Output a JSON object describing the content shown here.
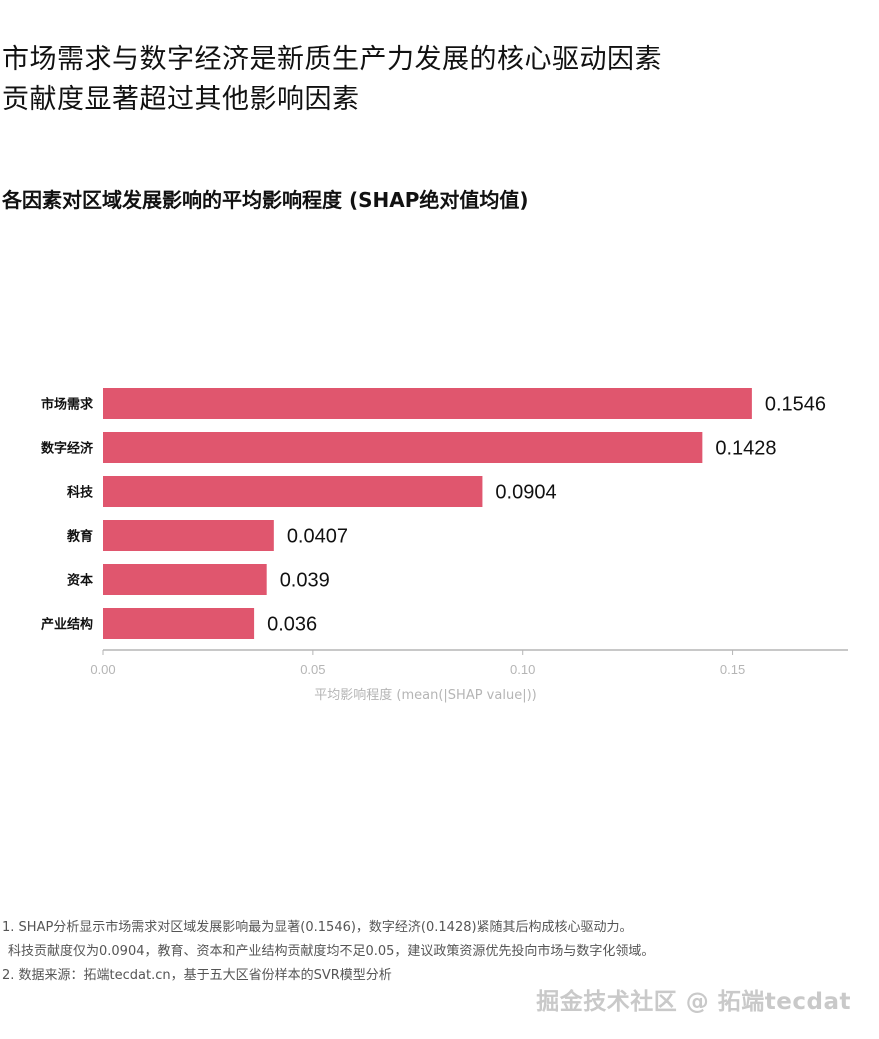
{
  "headline": {
    "line1": "市场需求与数字经济是新质生产力发展的核心驱动因素",
    "line2": "贡献度显著超过其他影响因素"
  },
  "subtitle": "各因素对区域发展影响的平均影响程度 (SHAP绝对值均值)",
  "chart_data": {
    "type": "bar",
    "orientation": "horizontal",
    "categories": [
      "市场需求",
      "数字经济",
      "科技",
      "教育",
      "资本",
      "产业结构"
    ],
    "values": [
      0.1546,
      0.1428,
      0.0904,
      0.0407,
      0.039,
      0.036
    ],
    "value_labels": [
      "0.1546",
      "0.1428",
      "0.0904",
      "0.0407",
      "0.039",
      "0.036"
    ],
    "xlabel": "平均影响程度 (mean(|SHAP value|))",
    "xticks": [
      "0.00",
      "0.05",
      "0.10",
      "0.15"
    ],
    "xtick_values": [
      0,
      0.05,
      0.1,
      0.15
    ],
    "xlim": [
      0,
      0.1775
    ],
    "bar_color": "#e0566e",
    "grid": false
  },
  "notes": {
    "line1": "1. SHAP分析显示市场需求对区域发展影响最为显著(0.1546)，数字经济(0.1428)紧随其后构成核心驱动力。",
    "line2": "   科技贡献度仅为0.0904，教育、资本和产业结构贡献度均不足0.05，建议政策资源优先投向市场与数字化领域。",
    "line3": "2. 数据来源：拓端tecdat.cn，基于五大区省份样本的SVR模型分析"
  },
  "watermark": "掘金技术社区 @ 拓端tecdat"
}
